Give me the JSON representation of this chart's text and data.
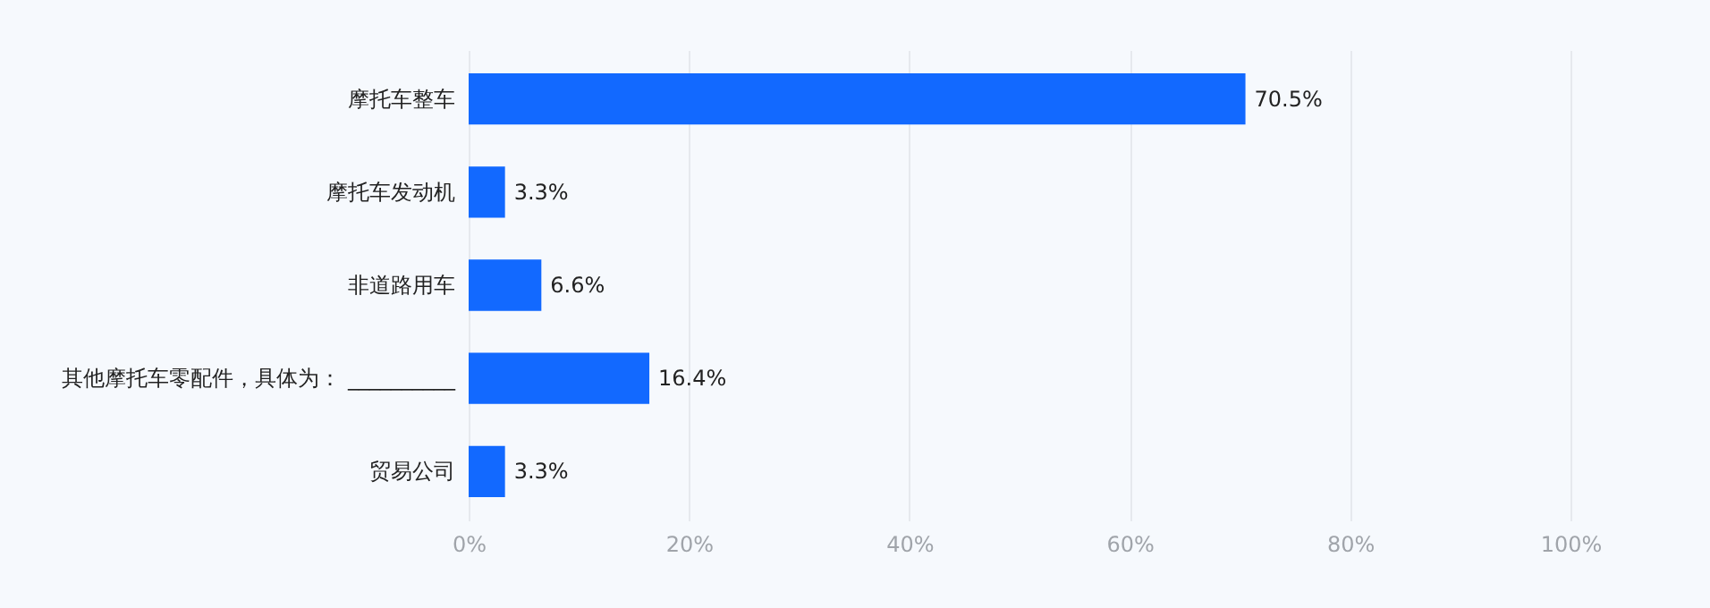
{
  "chart_data": {
    "type": "bar",
    "orientation": "horizontal",
    "categories": [
      "摩托车整车",
      "摩托车发动机",
      "非道路用车",
      "其他摩托车零配件，具体为：  __________",
      "贸易公司"
    ],
    "values": [
      70.5,
      3.3,
      6.6,
      16.4,
      3.3
    ],
    "value_labels": [
      "70.5%",
      "3.3%",
      "6.6%",
      "16.4%",
      "3.3%"
    ],
    "color": "#1269ff",
    "xlim": [
      0,
      100
    ],
    "xticks": [
      {
        "value": 0,
        "label": "0%"
      },
      {
        "value": 20,
        "label": "20%"
      },
      {
        "value": 40,
        "label": "40%"
      },
      {
        "value": 60,
        "label": "60%"
      },
      {
        "value": 80,
        "label": "80%"
      },
      {
        "value": 100,
        "label": "100%"
      }
    ],
    "grid": "x"
  }
}
